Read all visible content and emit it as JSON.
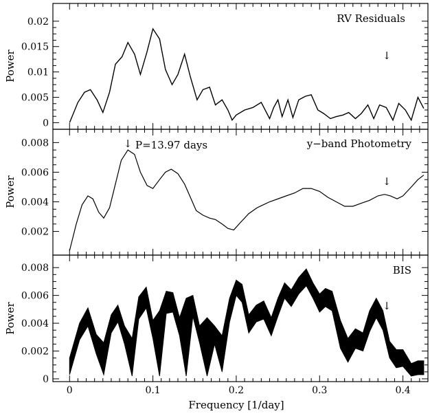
{
  "chart_data": [
    {
      "type": "line",
      "title": "RV Residuals",
      "xlabel": "",
      "ylabel": "Power",
      "xlim": [
        -0.02,
        0.43
      ],
      "ylim": [
        -0.0013,
        0.0235
      ],
      "x_ticks": [
        "0",
        "0.1",
        "0.2",
        "0.3",
        "0.4"
      ],
      "y_ticks": [
        "0",
        "0.005",
        "0.01",
        "0.015",
        "0.02"
      ],
      "annotation_arrow_x": 0.393,
      "series": [
        {
          "x": [
            0.0,
            0.01,
            0.018,
            0.025,
            0.033,
            0.04,
            0.048,
            0.055,
            0.063,
            0.07,
            0.078,
            0.085,
            0.093,
            0.1,
            0.108,
            0.115,
            0.123,
            0.13,
            0.138,
            0.145,
            0.153,
            0.16,
            0.168,
            0.175,
            0.183,
            0.19,
            0.195,
            0.2,
            0.21,
            0.22,
            0.23,
            0.24,
            0.245,
            0.25,
            0.255,
            0.262,
            0.268,
            0.275,
            0.283,
            0.29,
            0.298,
            0.305,
            0.313,
            0.32,
            0.328,
            0.335,
            0.343,
            0.35,
            0.358,
            0.365,
            0.372,
            0.38,
            0.388,
            0.395,
            0.403,
            0.41,
            0.418,
            0.425
          ],
          "y": [
            0.0,
            0.004,
            0.006,
            0.0065,
            0.0045,
            0.002,
            0.006,
            0.0115,
            0.013,
            0.0158,
            0.0135,
            0.0095,
            0.014,
            0.0185,
            0.0165,
            0.0105,
            0.0075,
            0.0095,
            0.0135,
            0.009,
            0.0045,
            0.0065,
            0.007,
            0.0035,
            0.0045,
            0.0025,
            0.0005,
            0.0015,
            0.0025,
            0.003,
            0.004,
            0.0008,
            0.003,
            0.0045,
            0.0012,
            0.0045,
            0.001,
            0.0045,
            0.0052,
            0.0055,
            0.0025,
            0.0018,
            0.0008,
            0.0012,
            0.0015,
            0.002,
            0.0008,
            0.0018,
            0.0035,
            0.0008,
            0.0035,
            0.003,
            0.0005,
            0.0038,
            0.0025,
            0.0005,
            0.005,
            0.0028
          ]
        }
      ]
    },
    {
      "type": "line",
      "title": "y−band Photometry",
      "xlabel": "",
      "ylabel": "Power",
      "xlim": [
        -0.02,
        0.43
      ],
      "ylim": [
        0.0004,
        0.0089
      ],
      "x_ticks": [
        "0",
        "0.1",
        "0.2",
        "0.3",
        "0.4"
      ],
      "y_ticks": [
        "0.002",
        "0.004",
        "0.006",
        "0.008"
      ],
      "annotations": [
        {
          "text": "P=13.97 days",
          "x": 0.07
        }
      ],
      "annotation_arrow_x": 0.393,
      "series": [
        {
          "x": [
            0.0,
            0.008,
            0.015,
            0.022,
            0.028,
            0.035,
            0.041,
            0.048,
            0.055,
            0.062,
            0.07,
            0.078,
            0.085,
            0.093,
            0.1,
            0.108,
            0.115,
            0.122,
            0.13,
            0.138,
            0.145,
            0.152,
            0.16,
            0.168,
            0.175,
            0.183,
            0.19,
            0.197,
            0.205,
            0.215,
            0.225,
            0.24,
            0.255,
            0.27,
            0.28,
            0.29,
            0.3,
            0.31,
            0.32,
            0.33,
            0.34,
            0.35,
            0.36,
            0.37,
            0.378,
            0.385,
            0.393,
            0.4,
            0.41,
            0.418,
            0.425
          ],
          "y": [
            0.0007,
            0.0025,
            0.0038,
            0.0044,
            0.0042,
            0.0033,
            0.0029,
            0.0036,
            0.0052,
            0.0068,
            0.0075,
            0.0072,
            0.006,
            0.0051,
            0.0049,
            0.0055,
            0.006,
            0.0062,
            0.0059,
            0.0052,
            0.0043,
            0.0034,
            0.0031,
            0.0029,
            0.0028,
            0.0025,
            0.0022,
            0.0021,
            0.0026,
            0.0032,
            0.0036,
            0.004,
            0.0043,
            0.0046,
            0.0049,
            0.0049,
            0.0047,
            0.0043,
            0.004,
            0.0037,
            0.0037,
            0.0039,
            0.0041,
            0.0044,
            0.0045,
            0.0044,
            0.0042,
            0.0044,
            0.005,
            0.0055,
            0.0058
          ]
        }
      ]
    },
    {
      "type": "area",
      "title": "BIS",
      "xlabel": "Frequency [1/day]",
      "ylabel": "Power",
      "xlim": [
        -0.02,
        0.43
      ],
      "ylim": [
        -0.0002,
        0.0089
      ],
      "x_ticks": [
        "0",
        "0.1",
        "0.2",
        "0.3",
        "0.4"
      ],
      "y_ticks": [
        "0",
        "0.002",
        "0.004",
        "0.006",
        "0.008"
      ],
      "annotation_arrow_x": 0.393,
      "series": [
        {
          "name": "upper",
          "x": [
            0.0,
            0.012,
            0.022,
            0.032,
            0.041,
            0.05,
            0.058,
            0.066,
            0.075,
            0.083,
            0.092,
            0.1,
            0.108,
            0.116,
            0.124,
            0.132,
            0.14,
            0.148,
            0.156,
            0.165,
            0.174,
            0.183,
            0.192,
            0.2,
            0.207,
            0.215,
            0.224,
            0.233,
            0.242,
            0.25,
            0.258,
            0.266,
            0.275,
            0.284,
            0.292,
            0.3,
            0.307,
            0.315,
            0.325,
            0.334,
            0.343,
            0.352,
            0.36,
            0.368,
            0.376,
            0.384,
            0.392,
            0.4,
            0.41,
            0.418,
            0.425
          ],
          "y": [
            0.0015,
            0.004,
            0.0051,
            0.0032,
            0.0026,
            0.0046,
            0.0053,
            0.0038,
            0.0029,
            0.0059,
            0.0066,
            0.0042,
            0.0049,
            0.0063,
            0.0062,
            0.0044,
            0.0058,
            0.006,
            0.0038,
            0.0044,
            0.0038,
            0.0031,
            0.0058,
            0.0071,
            0.0068,
            0.0046,
            0.0053,
            0.0056,
            0.0044,
            0.0058,
            0.0069,
            0.0064,
            0.0073,
            0.0079,
            0.0069,
            0.0061,
            0.0065,
            0.0063,
            0.0042,
            0.0029,
            0.0036,
            0.0033,
            0.0049,
            0.0058,
            0.0049,
            0.0027,
            0.0021,
            0.0021,
            0.0011,
            0.0013,
            0.0013
          ]
        },
        {
          "name": "lower",
          "x": [
            0.0,
            0.012,
            0.022,
            0.032,
            0.041,
            0.05,
            0.058,
            0.066,
            0.075,
            0.083,
            0.092,
            0.1,
            0.108,
            0.116,
            0.124,
            0.132,
            0.14,
            0.148,
            0.156,
            0.165,
            0.174,
            0.183,
            0.192,
            0.2,
            0.207,
            0.215,
            0.224,
            0.233,
            0.242,
            0.25,
            0.258,
            0.266,
            0.275,
            0.284,
            0.292,
            0.3,
            0.307,
            0.315,
            0.325,
            0.334,
            0.343,
            0.352,
            0.36,
            0.368,
            0.376,
            0.384,
            0.392,
            0.4,
            0.41,
            0.418,
            0.425
          ],
          "y": [
            0.0003,
            0.0028,
            0.0038,
            0.0018,
            0.0003,
            0.0033,
            0.0041,
            0.0025,
            0.0002,
            0.0043,
            0.0051,
            0.0029,
            0.0002,
            0.0047,
            0.0048,
            0.0031,
            0.0002,
            0.0045,
            0.0026,
            0.0002,
            0.0025,
            0.0005,
            0.0041,
            0.006,
            0.0055,
            0.0033,
            0.0041,
            0.0043,
            0.0031,
            0.0045,
            0.0058,
            0.0052,
            0.0061,
            0.0067,
            0.0058,
            0.0048,
            0.0052,
            0.0049,
            0.0022,
            0.0012,
            0.0022,
            0.002,
            0.0034,
            0.0044,
            0.0035,
            0.0015,
            0.0008,
            0.0009,
            0.0002,
            0.0003,
            0.0003
          ]
        }
      ]
    }
  ]
}
